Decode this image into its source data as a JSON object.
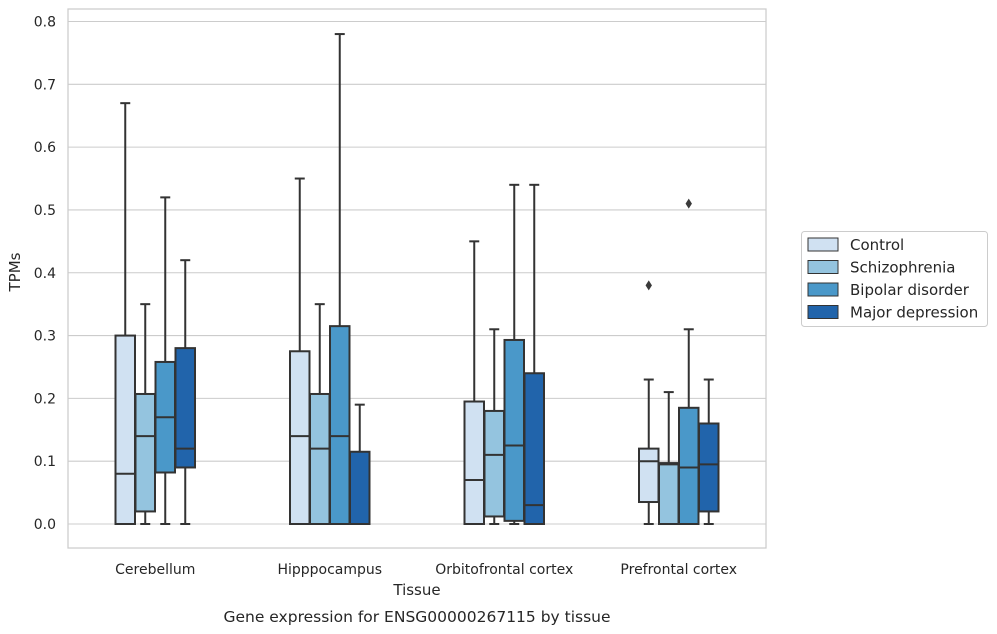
{
  "chart_data": {
    "type": "box",
    "xlabel": "Tissue",
    "ylabel": "TPMs",
    "caption": "Gene expression for ENSG00000267115 by tissue",
    "ylim": [
      -0.04,
      0.82
    ],
    "yticks": [
      "0.0",
      "0.1",
      "0.2",
      "0.3",
      "0.4",
      "0.5",
      "0.6",
      "0.7",
      "0.8"
    ],
    "grid": true,
    "legend_position": "right",
    "categories": [
      "Cerebellum",
      "Hipppocampus",
      "Orbitofrontal cortex",
      "Prefrontal cortex"
    ],
    "series": [
      {
        "name": "Control",
        "color": "#d0e1f2",
        "boxes": [
          {
            "whislo": 0.0,
            "q1": 0.0,
            "med": 0.08,
            "q3": 0.3,
            "whishi": 0.67,
            "fliers": []
          },
          {
            "whislo": 0.0,
            "q1": 0.0,
            "med": 0.14,
            "q3": 0.275,
            "whishi": 0.55,
            "fliers": []
          },
          {
            "whislo": 0.0,
            "q1": 0.0,
            "med": 0.07,
            "q3": 0.195,
            "whishi": 0.45,
            "fliers": []
          },
          {
            "whislo": 0.0,
            "q1": 0.035,
            "med": 0.1,
            "q3": 0.12,
            "whishi": 0.23,
            "fliers": [
              0.38
            ]
          }
        ]
      },
      {
        "name": "Schizophrenia",
        "color": "#94c4df",
        "boxes": [
          {
            "whislo": 0.0,
            "q1": 0.02,
            "med": 0.14,
            "q3": 0.207,
            "whishi": 0.35,
            "fliers": []
          },
          {
            "whislo": 0.0,
            "q1": 0.0,
            "med": 0.12,
            "q3": 0.207,
            "whishi": 0.35,
            "fliers": []
          },
          {
            "whislo": 0.0,
            "q1": 0.012,
            "med": 0.11,
            "q3": 0.18,
            "whishi": 0.31,
            "fliers": []
          },
          {
            "whislo": 0.0,
            "q1": 0.0,
            "med": 0.095,
            "q3": 0.097,
            "whishi": 0.21,
            "fliers": []
          }
        ]
      },
      {
        "name": "Bipolar disorder",
        "color": "#4a98c9",
        "boxes": [
          {
            "whislo": 0.0,
            "q1": 0.082,
            "med": 0.17,
            "q3": 0.258,
            "whishi": 0.52,
            "fliers": []
          },
          {
            "whislo": 0.0,
            "q1": 0.0,
            "med": 0.14,
            "q3": 0.315,
            "whishi": 0.78,
            "fliers": []
          },
          {
            "whislo": 0.0,
            "q1": 0.005,
            "med": 0.125,
            "q3": 0.293,
            "whishi": 0.54,
            "fliers": []
          },
          {
            "whislo": 0.0,
            "q1": 0.0,
            "med": 0.09,
            "q3": 0.185,
            "whishi": 0.31,
            "fliers": [
              0.51
            ]
          }
        ]
      },
      {
        "name": "Major depression",
        "color": "#2164ab",
        "boxes": [
          {
            "whislo": 0.0,
            "q1": 0.09,
            "med": 0.12,
            "q3": 0.28,
            "whishi": 0.42,
            "fliers": []
          },
          {
            "whislo": 0.0,
            "q1": 0.0,
            "med": 0.0,
            "q3": 0.115,
            "whishi": 0.19,
            "fliers": []
          },
          {
            "whislo": 0.0,
            "q1": 0.0,
            "med": 0.03,
            "q3": 0.24,
            "whishi": 0.54,
            "fliers": []
          },
          {
            "whislo": 0.0,
            "q1": 0.02,
            "med": 0.095,
            "q3": 0.16,
            "whishi": 0.23,
            "fliers": []
          }
        ]
      }
    ]
  }
}
